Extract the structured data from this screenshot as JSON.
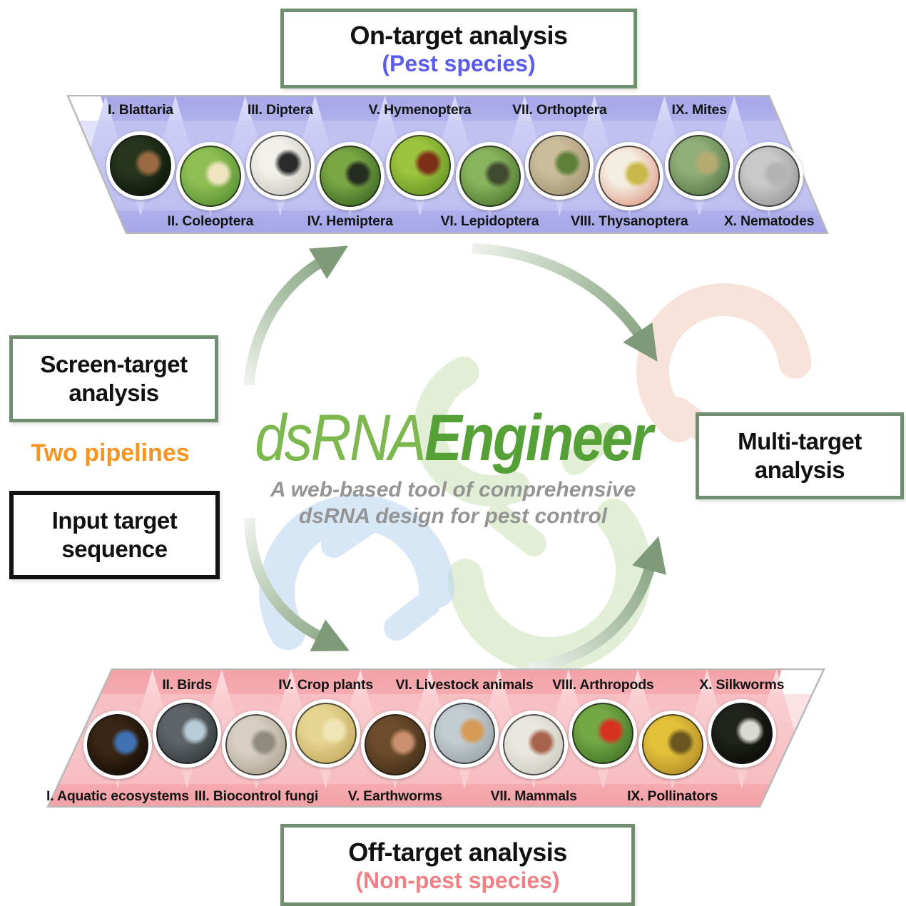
{
  "palette": {
    "box_border_green": "#6f8f6e",
    "input_border_black": "#121212",
    "title_green_light": "#7cb84d",
    "title_green_dark": "#55a037",
    "subtitle_gray": "#949494",
    "pest_blue": "#5c5cea",
    "nonpest_pink": "#ef8186",
    "pipelines_orange": "#f7941d",
    "strip_border_gray": "#b9b9b9",
    "label_black": "#151515",
    "band_blue": "#cbcbf4",
    "tri_blue_dark": "#a6a6e9",
    "tri_blue_light": "#dcdcfa",
    "band_pink": "#f8ccd0",
    "tri_pink_dark": "#f3a1a6",
    "tri_pink_light": "#fddcde",
    "arrow_tail": "#eef2ec",
    "arrow_mid": "#a9bfa4",
    "arrow_head": "#7e9a79",
    "helix_peach": "#f2cdbd",
    "helix_green": "#cfe5bb",
    "helix_blue": "#bdd8f0"
  },
  "top_box": {
    "title": "On-target analysis",
    "subtitle": "(Pest species)"
  },
  "bottom_box": {
    "title": "Off-target analysis",
    "subtitle": "(Non-pest species)"
  },
  "left_panel": {
    "screen_box_label": "Screen-target analysis",
    "pipelines_label": "Two pipelines",
    "input_box_label": "Input target sequence"
  },
  "right_panel": {
    "multi_box_label": "Multi-target analysis"
  },
  "center": {
    "title_regular": "dsRNA",
    "title_bold": "Engineer",
    "subtitle_line1": "A web-based tool of comprehensive",
    "subtitle_line2": "dsRNA design for pest control"
  },
  "top_strip": {
    "theme": "blue",
    "items": [
      {
        "label": "I. Blattaria",
        "label_position": "top",
        "photo": "cockroach-photo",
        "colors": {
          "center": "#27351d",
          "edge": "#101a0b",
          "accent": "#9a6a42"
        }
      },
      {
        "label": "II. Coleoptera",
        "label_position": "bottom",
        "photo": "potato-beetle-photo",
        "colors": {
          "center": "#8fbf53",
          "edge": "#5d9638",
          "accent": "#efe6c0"
        }
      },
      {
        "label": "III. Diptera",
        "label_position": "top",
        "photo": "fly-photo",
        "colors": {
          "center": "#f2f0ea",
          "edge": "#cfcdc5",
          "accent": "#2b2b2b"
        }
      },
      {
        "label": "IV. Hemiptera",
        "label_position": "bottom",
        "photo": "aphids-photo",
        "colors": {
          "center": "#7aa744",
          "edge": "#45702a",
          "accent": "#232d20"
        }
      },
      {
        "label": "V. Hymenoptera",
        "label_position": "top",
        "photo": "ant-photo",
        "colors": {
          "center": "#9cc43e",
          "edge": "#6d9a28",
          "accent": "#7c2f16"
        }
      },
      {
        "label": "VI. Lepidoptera",
        "label_position": "bottom",
        "photo": "caterpillar-photo",
        "colors": {
          "center": "#89b45e",
          "edge": "#567f35",
          "accent": "#3f4a2e"
        }
      },
      {
        "label": "VII. Orthoptera",
        "label_position": "top",
        "photo": "grasshopper-photo",
        "colors": {
          "center": "#cbbd9b",
          "edge": "#a89a78",
          "accent": "#5f8038"
        }
      },
      {
        "label": "VIII. Thysanoptera",
        "label_position": "bottom",
        "photo": "thrips-flower-photo",
        "colors": {
          "center": "#f5efe2",
          "edge": "#e2a896",
          "accent": "#c8b84a"
        }
      },
      {
        "label": "IX. Mites",
        "label_position": "top",
        "photo": "mite-photo",
        "colors": {
          "center": "#8fae78",
          "edge": "#5f7f4f",
          "accent": "#b5ab70"
        }
      },
      {
        "label": "X. Nematodes",
        "label_position": "bottom",
        "photo": "nematode-photo",
        "colors": {
          "center": "#c9c9c9",
          "edge": "#9f9f9f",
          "accent": "#b3b3b3"
        }
      }
    ]
  },
  "bottom_strip": {
    "theme": "pink",
    "items": [
      {
        "label": "I. Aquatic ecosystems",
        "label_position": "bottom",
        "photo": "zebrafish-photo",
        "colors": {
          "center": "#3a2614",
          "edge": "#190f06",
          "accent": "#3f72b5"
        }
      },
      {
        "label": "II. Birds",
        "label_position": "top",
        "photo": "nuthatch-bird-photo",
        "colors": {
          "center": "#5e6468",
          "edge": "#3b4042",
          "accent": "#b8ccd8"
        }
      },
      {
        "label": "III. Biocontrol fungi",
        "label_position": "bottom",
        "photo": "fungus-photo",
        "colors": {
          "center": "#d6cfc2",
          "edge": "#b4ab99",
          "accent": "#8e8a7c"
        }
      },
      {
        "label": "IV. Crop plants",
        "label_position": "top",
        "photo": "wheat-photo",
        "colors": {
          "center": "#e5d492",
          "edge": "#c9b065",
          "accent": "#f0e6b5"
        }
      },
      {
        "label": "V. Earthworms",
        "label_position": "bottom",
        "photo": "earthworm-photo",
        "colors": {
          "center": "#6b4c2c",
          "edge": "#49311a",
          "accent": "#c98f6e"
        }
      },
      {
        "label": "VI. Livestock animals",
        "label_position": "top",
        "photo": "chickens-photo",
        "colors": {
          "center": "#c3ccd0",
          "edge": "#9fa9ad",
          "accent": "#d69a56"
        }
      },
      {
        "label": "VII. Mammals",
        "label_position": "bottom",
        "photo": "human-face-photo",
        "colors": {
          "center": "#e9e7df",
          "edge": "#cfcdc3",
          "accent": "#a8644a"
        }
      },
      {
        "label": "VIII. Arthropods",
        "label_position": "top",
        "photo": "ladybug-photo",
        "colors": {
          "center": "#74a845",
          "edge": "#4a7a2b",
          "accent": "#d8311f"
        }
      },
      {
        "label": "IX. Pollinators",
        "label_position": "bottom",
        "photo": "bees-photo",
        "colors": {
          "center": "#e3c23a",
          "edge": "#b8922a",
          "accent": "#6b5520"
        }
      },
      {
        "label": "X. Silkworms",
        "label_position": "top",
        "photo": "silkworm-photo",
        "colors": {
          "center": "#20241c",
          "edge": "#0c0e09",
          "accent": "#dadbd2"
        }
      }
    ]
  }
}
